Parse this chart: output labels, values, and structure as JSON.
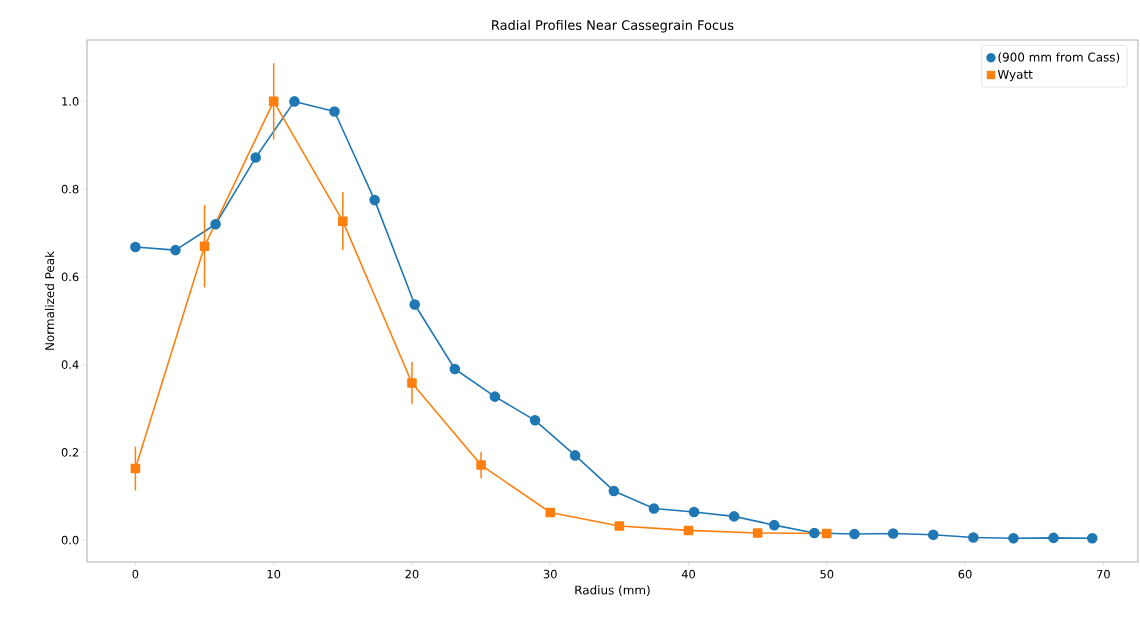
{
  "chart_data": {
    "type": "line",
    "title": "Radial Profiles Near Cassegrain Focus",
    "xlabel": "Radius (mm)",
    "ylabel": "Normalized Peak",
    "xlim": [
      -3.5,
      72.5
    ],
    "ylim": [
      -0.05,
      1.14
    ],
    "xticks": [
      0,
      10,
      20,
      30,
      40,
      50,
      60,
      70
    ],
    "yticks": [
      {
        "value": 0,
        "label": "0.0"
      },
      {
        "value": 0.2,
        "label": "0.2"
      },
      {
        "value": 0.4,
        "label": "0.4"
      },
      {
        "value": 0.6,
        "label": "0.6"
      },
      {
        "value": 0.8,
        "label": "0.8"
      },
      {
        "value": 1.0,
        "label": "1.0"
      }
    ],
    "legend": "top right",
    "grid": false,
    "line_style": "solid",
    "series": [
      {
        "name": "(900 mm from Cass)",
        "color": "#1f77b4",
        "marker": "circle",
        "x": [
          0,
          2.9,
          5.8,
          8.7,
          11.5,
          14.4,
          17.3,
          20.2,
          23.1,
          26.0,
          28.9,
          31.8,
          34.6,
          37.5,
          40.4,
          43.3,
          46.2,
          49.1,
          52.0,
          54.8,
          57.7,
          60.6,
          63.5,
          66.4,
          69.2
        ],
        "values": [
          0.668,
          0.661,
          0.72,
          0.872,
          1.0,
          0.977,
          0.775,
          0.537,
          0.39,
          0.327,
          0.273,
          0.193,
          0.112,
          0.072,
          0.064,
          0.054,
          0.034,
          0.016,
          0.014,
          0.015,
          0.012,
          0.006,
          0.004,
          0.005,
          0.004
        ]
      },
      {
        "name": "Wyatt",
        "color": "#ff7f0e",
        "marker": "square",
        "x": [
          0,
          5,
          10,
          15,
          20,
          25,
          30,
          35,
          40,
          45,
          50
        ],
        "values": [
          0.163,
          0.67,
          1.0,
          0.727,
          0.358,
          0.171,
          0.063,
          0.032,
          0.022,
          0.016,
          0.015
        ],
        "errors": [
          0.05,
          0.094,
          0.087,
          0.066,
          0.048,
          0.03,
          0.01,
          0.005,
          0.005,
          null,
          null
        ]
      }
    ]
  }
}
